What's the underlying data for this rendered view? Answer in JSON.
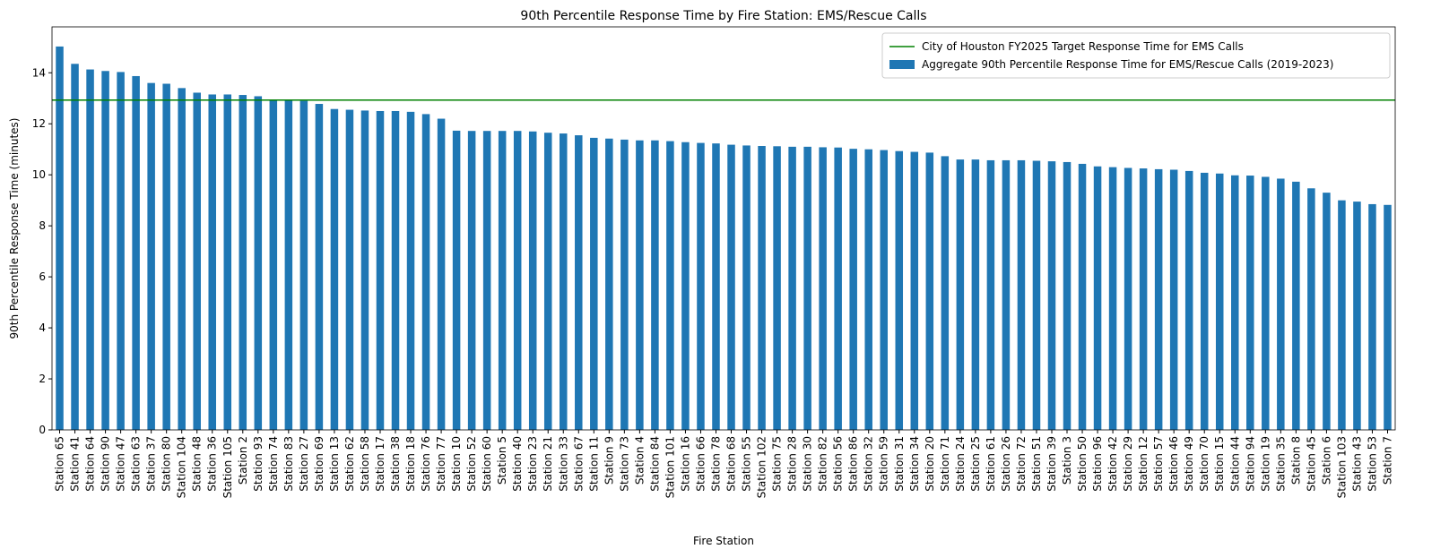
{
  "chart_data": {
    "type": "bar",
    "title": "90th Percentile Response Time by Fire Station: EMS/Rescue Calls",
    "x_label": "Fire Station",
    "y_label": "90th Percentile Response Time (minutes)",
    "categories": [
      "Station 65",
      "Station 41",
      "Station 64",
      "Station 90",
      "Station 47",
      "Station 63",
      "Station 37",
      "Station 80",
      "Station 104",
      "Station 48",
      "Station 36",
      "Station 105",
      "Station 2",
      "Station 93",
      "Station 74",
      "Station 83",
      "Station 27",
      "Station 69",
      "Station 13",
      "Station 62",
      "Station 58",
      "Station 17",
      "Station 38",
      "Station 18",
      "Station 76",
      "Station 77",
      "Station 10",
      "Station 52",
      "Station 60",
      "Station 5",
      "Station 40",
      "Station 23",
      "Station 21",
      "Station 33",
      "Station 67",
      "Station 11",
      "Station 9",
      "Station 73",
      "Station 4",
      "Station 84",
      "Station 101",
      "Station 16",
      "Station 66",
      "Station 78",
      "Station 68",
      "Station 55",
      "Station 102",
      "Station 75",
      "Station 28",
      "Station 30",
      "Station 82",
      "Station 56",
      "Station 86",
      "Station 32",
      "Station 59",
      "Station 31",
      "Station 34",
      "Station 20",
      "Station 71",
      "Station 24",
      "Station 25",
      "Station 61",
      "Station 26",
      "Station 72",
      "Station 51",
      "Station 39",
      "Station 3",
      "Station 50",
      "Station 96",
      "Station 42",
      "Station 29",
      "Station 12",
      "Station 57",
      "Station 46",
      "Station 49",
      "Station 70",
      "Station 15",
      "Station 44",
      "Station 94",
      "Station 19",
      "Station 35",
      "Station 8",
      "Station 45",
      "Station 6",
      "Station 103",
      "Station 43",
      "Station 53",
      "Station 7"
    ],
    "series": [
      {
        "name": "Aggregate 90th Percentile Response Time for EMS/Rescue Calls (2019-2023)",
        "color": "#1f77b4",
        "values": [
          15.03,
          14.35,
          14.13,
          14.07,
          14.03,
          13.87,
          13.6,
          13.57,
          13.4,
          13.22,
          13.15,
          13.15,
          13.13,
          13.08,
          12.93,
          12.92,
          12.9,
          12.78,
          12.58,
          12.55,
          12.52,
          12.5,
          12.5,
          12.47,
          12.38,
          12.2,
          11.73,
          11.72,
          11.72,
          11.72,
          11.72,
          11.7,
          11.65,
          11.62,
          11.55,
          11.45,
          11.42,
          11.38,
          11.35,
          11.35,
          11.32,
          11.28,
          11.25,
          11.23,
          11.18,
          11.15,
          11.13,
          11.12,
          11.1,
          11.1,
          11.08,
          11.07,
          11.02,
          11.0,
          10.97,
          10.93,
          10.9,
          10.87,
          10.73,
          10.6,
          10.6,
          10.57,
          10.57,
          10.57,
          10.55,
          10.53,
          10.5,
          10.43,
          10.33,
          10.3,
          10.27,
          10.25,
          10.22,
          10.2,
          10.15,
          10.08,
          10.05,
          9.98,
          9.97,
          9.92,
          9.85,
          9.73,
          9.47,
          9.3,
          9.0,
          8.95,
          8.85,
          8.82
        ]
      }
    ],
    "reference_line": {
      "name": "City of Houston FY2025 Target Response Time for EMS Calls",
      "color": "#008000",
      "value": 12.93
    },
    "ylim": [
      0,
      15.8
    ],
    "yticks": [
      0,
      2,
      4,
      6,
      8,
      10,
      12,
      14
    ],
    "legend": "upper right"
  }
}
